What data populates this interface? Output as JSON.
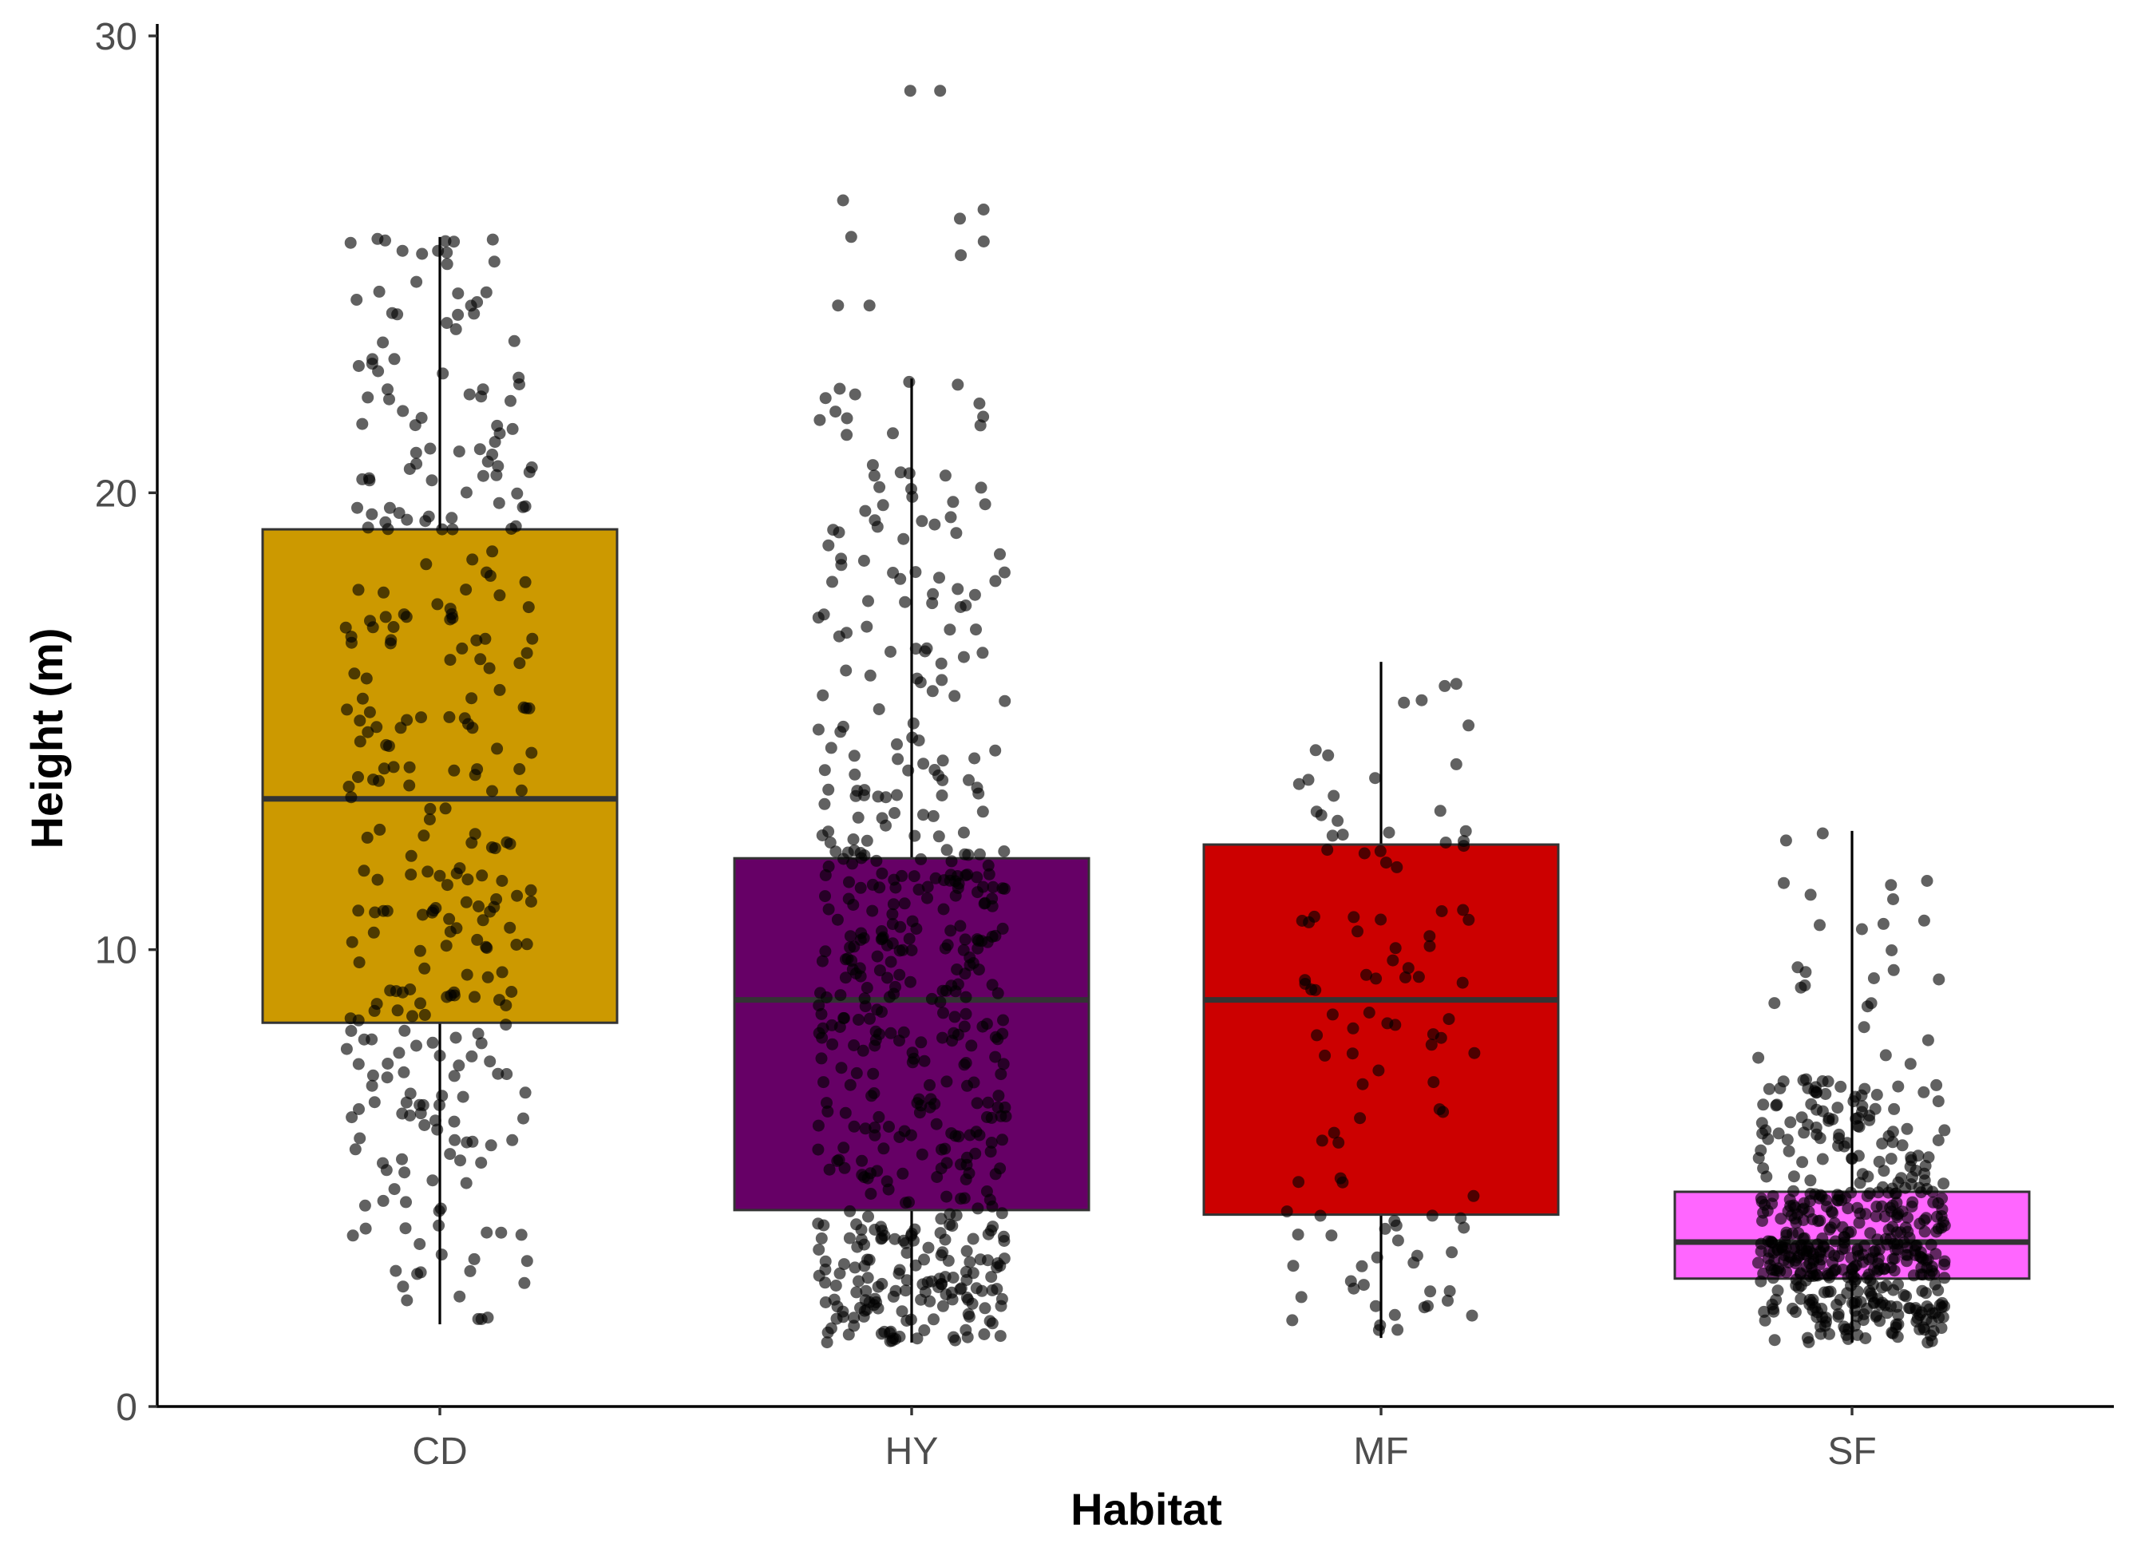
{
  "chart_data": {
    "type": "box",
    "xlabel": "Habitat",
    "ylabel": "Height (m)",
    "ylim": [
      0,
      30
    ],
    "yticks": [
      "0",
      "10",
      "20",
      "30"
    ],
    "grid": false,
    "categories": [
      "CD",
      "HY",
      "MF",
      "SF"
    ],
    "colors": [
      "#CC9900",
      "#660066",
      "#CC0000",
      "#FF66FF"
    ],
    "boxes": [
      {
        "min": 1.8,
        "q1": 8.4,
        "median": 13.3,
        "q3": 19.2,
        "max": 25.6
      },
      {
        "min": 1.4,
        "q1": 4.3,
        "median": 8.9,
        "q3": 12.0,
        "max": 22.5
      },
      {
        "min": 1.5,
        "q1": 4.2,
        "median": 8.9,
        "q3": 12.3,
        "max": 16.3
      },
      {
        "min": 1.4,
        "q1": 2.8,
        "median": 3.6,
        "q3": 4.7,
        "max": 12.6
      }
    ],
    "outliers": [
      {
        "category": "HY",
        "values": [
          24.1,
          24.1,
          25.2,
          25.5,
          25.6,
          26.0,
          26.2,
          26.4,
          28.8,
          28.8
        ]
      }
    ],
    "points_per_category": [
      330,
      560,
      110,
      520
    ]
  }
}
